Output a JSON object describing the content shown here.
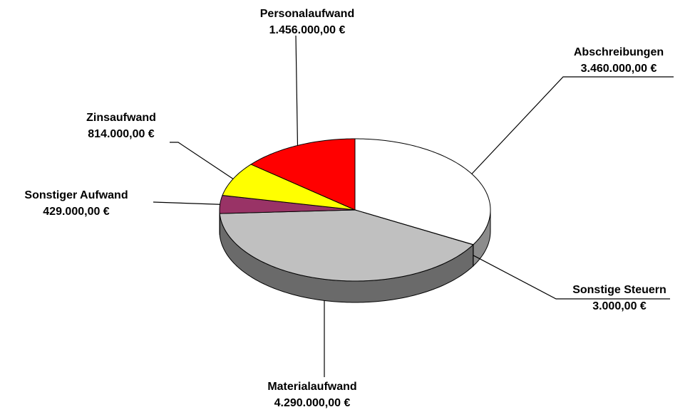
{
  "chart_data": {
    "type": "pie",
    "categories": [
      "Abschreibungen",
      "Sonstige Steuern",
      "Materialaufwand",
      "Sonstiger Aufwand",
      "Zinsaufwand",
      "Personalaufwand"
    ],
    "values": [
      3460000,
      3000,
      4290000,
      429000,
      814000,
      1456000
    ],
    "value_labels": [
      "3.460.000,00 €",
      "3.000,00 €",
      "4.290.000,00 €",
      "429.000,00 €",
      "814.000,00 €",
      "1.456.000,00 €"
    ],
    "colors": [
      "#ffffff",
      "#333399",
      "#c0c0c0",
      "#993366",
      "#ffff00",
      "#ff0000"
    ]
  }
}
